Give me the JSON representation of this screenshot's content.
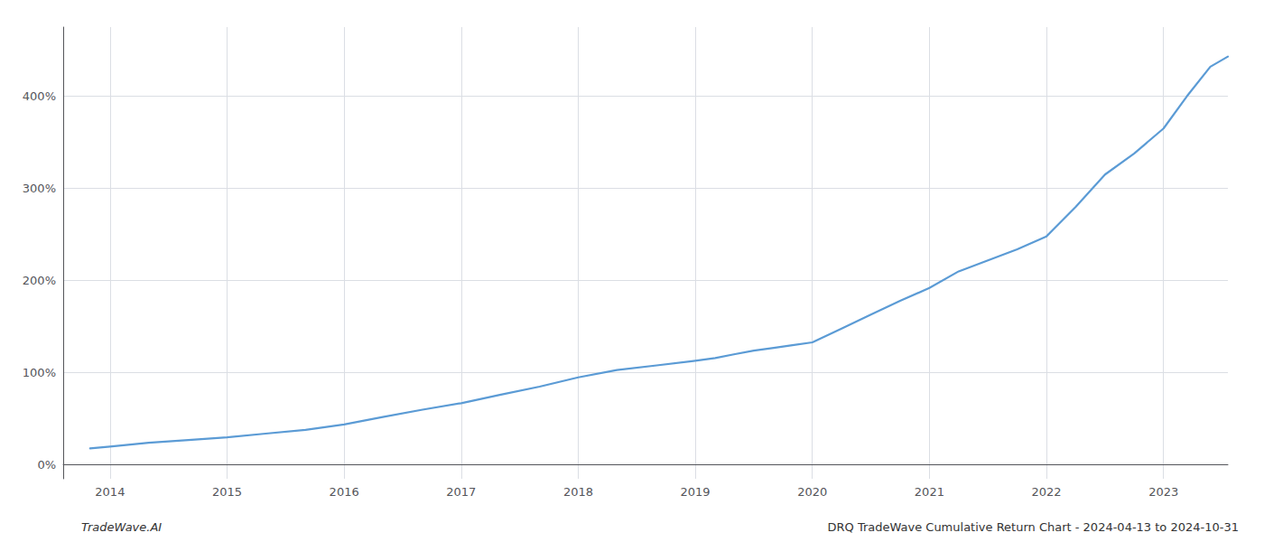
{
  "chart_data": {
    "type": "line",
    "annotations": [
      "TradeWave.AI",
      "DRQ TradeWave Cumulative Return Chart - 2024-04-13 to 2024-10-31"
    ],
    "x": [
      2013.83,
      2014.0,
      2014.33,
      2014.67,
      2015.0,
      2015.33,
      2015.67,
      2016.0,
      2016.33,
      2016.67,
      2017.0,
      2017.33,
      2017.67,
      2018.0,
      2018.33,
      2018.67,
      2019.0,
      2019.17,
      2019.33,
      2019.5,
      2019.67,
      2019.83,
      2020.0,
      2020.25,
      2020.5,
      2020.75,
      2021.0,
      2021.25,
      2021.5,
      2021.75,
      2022.0,
      2022.25,
      2022.5,
      2022.75,
      2023.0,
      2023.2,
      2023.4,
      2023.55
    ],
    "values": [
      18,
      20,
      24,
      27,
      30,
      34,
      38,
      44,
      52,
      60,
      67,
      76,
      85,
      95,
      103,
      108,
      113,
      116,
      120,
      124,
      127,
      130,
      133,
      148,
      163,
      178,
      192,
      210,
      222,
      234,
      248,
      280,
      315,
      338,
      365,
      400,
      432,
      443
    ],
    "color": "#5b9bd5",
    "xlim": [
      2013.6,
      2023.55
    ],
    "xticks": [
      2014,
      2015,
      2016,
      2017,
      2018,
      2019,
      2020,
      2021,
      2022,
      2023
    ],
    "ylim": [
      -15,
      475
    ],
    "yticks": [
      {
        "value": 0,
        "label": "0%"
      },
      {
        "value": 100,
        "label": "100%"
      },
      {
        "value": 200,
        "label": "200%"
      },
      {
        "value": 300,
        "label": "300%"
      },
      {
        "value": 400,
        "label": "400%"
      }
    ],
    "grid": true
  }
}
